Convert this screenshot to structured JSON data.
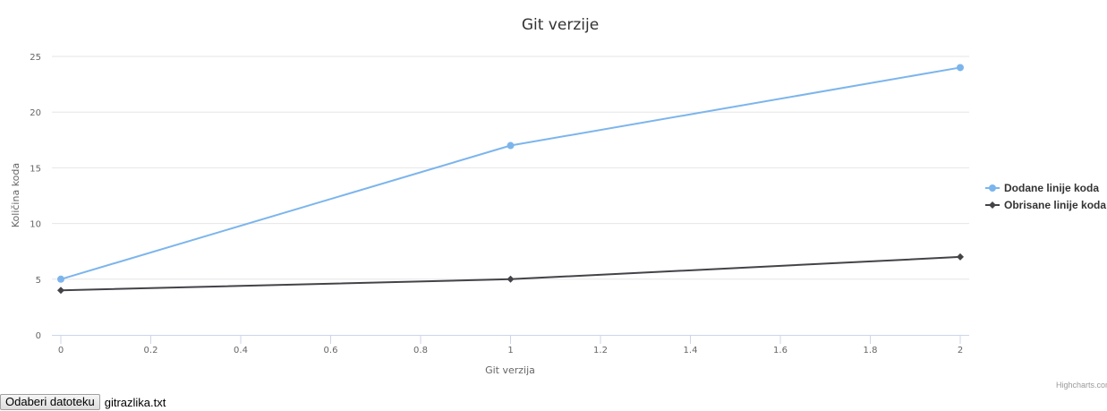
{
  "chart_data": {
    "type": "line",
    "title": "Git verzije",
    "xlabel": "Git verzija",
    "ylabel": "Količina koda",
    "x": [
      0,
      1,
      2
    ],
    "xlim": [
      0,
      2
    ],
    "ylim": [
      0,
      25
    ],
    "x_ticks": [
      "0",
      "0.2",
      "0.4",
      "0.6",
      "0.8",
      "1",
      "1.2",
      "1.4",
      "1.6",
      "1.8",
      "2"
    ],
    "y_ticks": [
      "0",
      "5",
      "10",
      "15",
      "20",
      "25"
    ],
    "grid": "horizontal",
    "legend_position": "right",
    "series": [
      {
        "name": "Dodane linije koda",
        "values": [
          5,
          17,
          24
        ],
        "color": "#7cb5ec",
        "marker": "circle"
      },
      {
        "name": "Obrisane linije koda",
        "values": [
          4,
          5,
          7
        ],
        "color": "#434348",
        "marker": "diamond"
      }
    ],
    "credits": "Highcharts.com"
  },
  "file_input": {
    "button_label": "Odaberi datoteku",
    "file_name": "gitrazlika.txt"
  }
}
